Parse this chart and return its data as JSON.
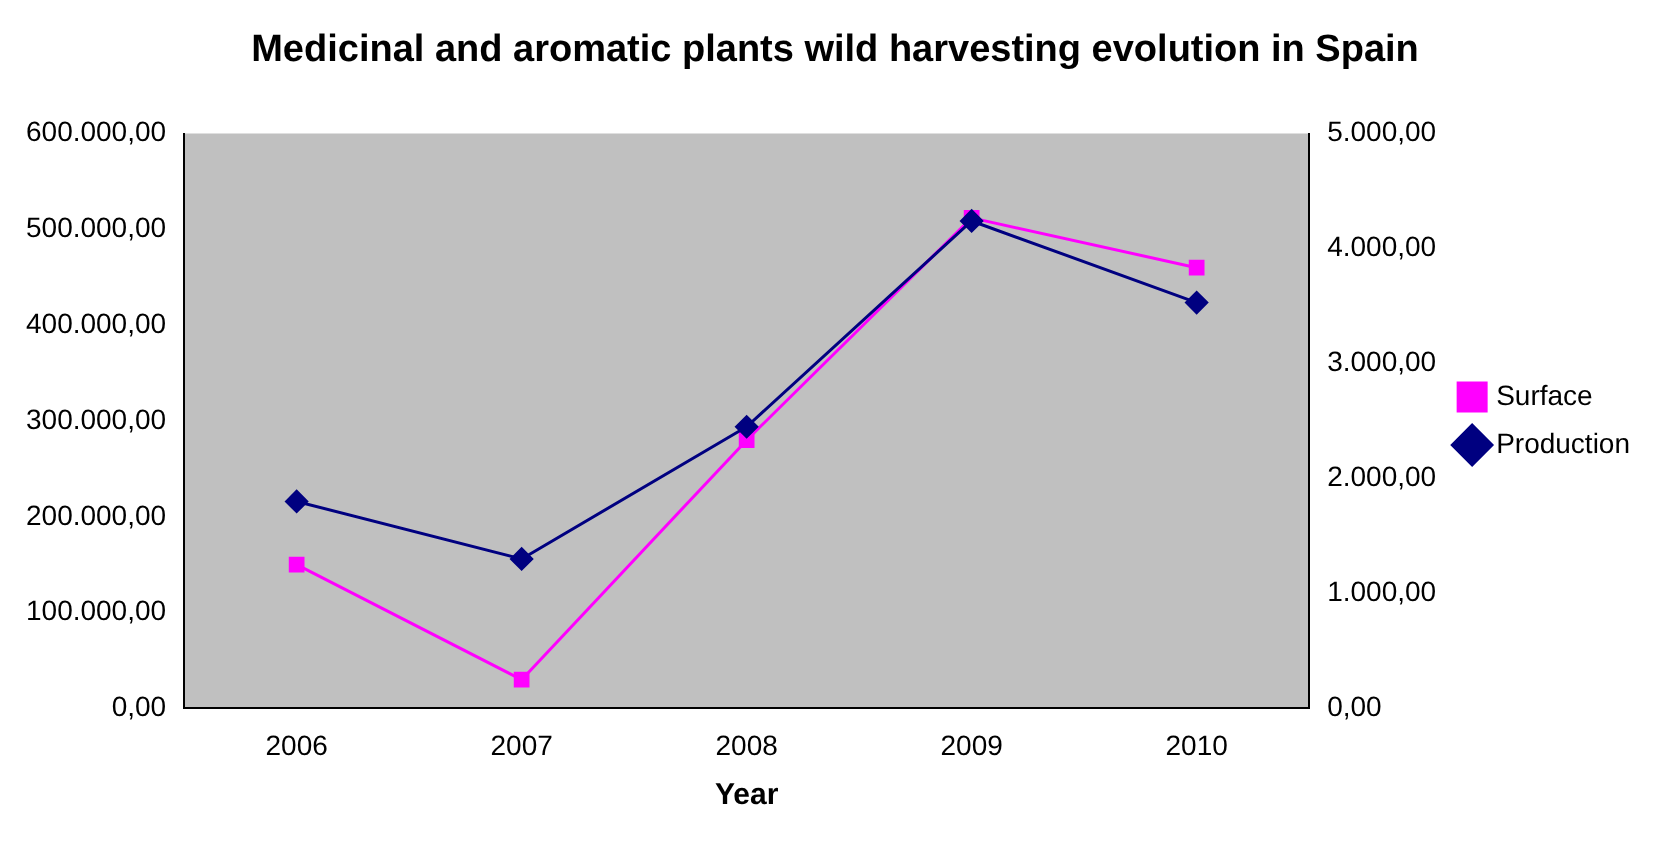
{
  "chart_data": {
    "type": "line",
    "title": "Medicinal and aromatic plants wild harvesting evolution in Spain",
    "xlabel": "Year",
    "categories": [
      "2006",
      "2007",
      "2008",
      "2009",
      "2010"
    ],
    "series": [
      {
        "name": "Surface",
        "color": "#ff00ff",
        "marker": "square",
        "values": [
          150000,
          30000,
          280000,
          512000,
          460000
        ]
      },
      {
        "name": "Production",
        "color": "#000080",
        "marker": "diamond",
        "axis": "y2",
        "values": [
          1800,
          1300,
          2450,
          4240,
          3530
        ]
      }
    ],
    "ylim": [
      0,
      600000
    ],
    "yticks": [
      {
        "value": 0,
        "label": "0,00"
      },
      {
        "value": 100000,
        "label": "100.000,00"
      },
      {
        "value": 200000,
        "label": "200.000,00"
      },
      {
        "value": 300000,
        "label": "300.000,00"
      },
      {
        "value": 400000,
        "label": "400.000,00"
      },
      {
        "value": 500000,
        "label": "500.000,00"
      },
      {
        "value": 600000,
        "label": "600.000,00"
      }
    ],
    "y2lim": [
      0,
      5000
    ],
    "y2ticks": [
      {
        "value": 0,
        "label": "0,00"
      },
      {
        "value": 1000,
        "label": "1.000,00"
      },
      {
        "value": 2000,
        "label": "2.000,00"
      },
      {
        "value": 3000,
        "label": "3.000,00"
      },
      {
        "value": 4000,
        "label": "4.000,00"
      },
      {
        "value": 5000,
        "label": "5.000,00"
      }
    ],
    "grid": false,
    "legend": "right",
    "line_style": "solid"
  }
}
